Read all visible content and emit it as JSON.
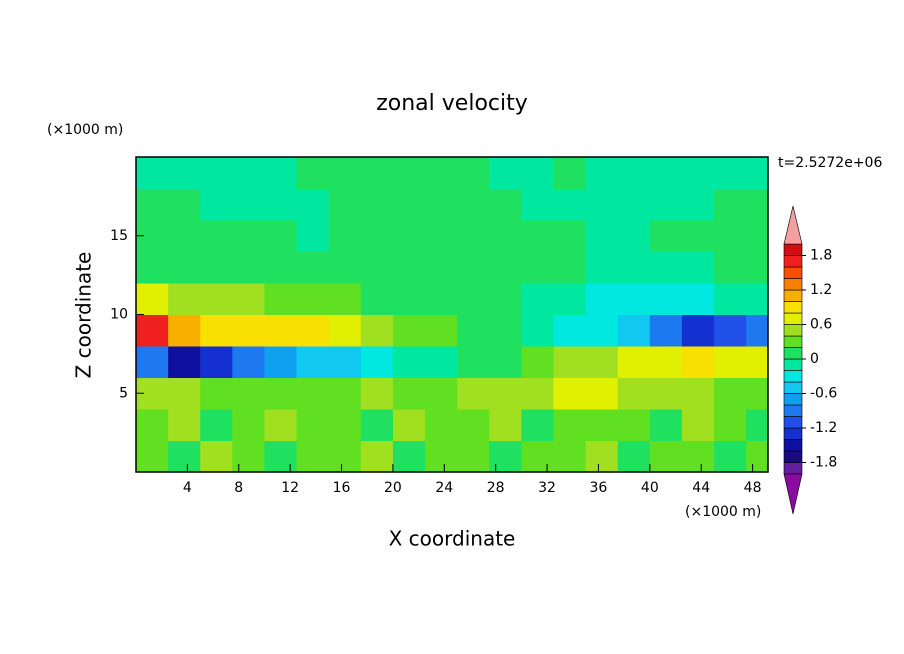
{
  "chart_data": {
    "type": "contour",
    "title": "zonal velocity",
    "x_label": "X coordinate",
    "y_label": "Z coordinate",
    "x_unit": "(×1000 m)",
    "y_unit": "(×1000 m)",
    "annotation": "t=2.5272e+06",
    "xlim": [
      0,
      49.2
    ],
    "ylim": [
      0,
      20
    ],
    "xticks": [
      4,
      8,
      12,
      16,
      20,
      24,
      28,
      32,
      36,
      40,
      44,
      48
    ],
    "yticks": [
      5,
      10,
      15
    ],
    "x": [
      1.25,
      3.75,
      6.25,
      8.75,
      11.25,
      13.75,
      16.25,
      18.75,
      21.25,
      23.75,
      26.25,
      28.75,
      31.25,
      33.75,
      36.25,
      38.75,
      41.25,
      43.75,
      46.25,
      48.75
    ],
    "y": [
      1,
      3,
      5,
      7,
      9,
      11,
      13,
      15,
      17,
      19
    ],
    "z": [
      [
        0.3,
        0.1,
        0.4,
        0.2,
        0.1,
        0.3,
        0.2,
        0.4,
        0.1,
        0.3,
        0.2,
        0.1,
        0.3,
        0.2,
        0.4,
        0.1,
        0.2,
        0.3,
        0.1,
        0.2
      ],
      [
        0.2,
        0.4,
        0.1,
        0.3,
        0.5,
        0.2,
        0.3,
        0.1,
        0.4,
        0.2,
        0.3,
        0.4,
        0.1,
        0.3,
        0.2,
        0.3,
        0.1,
        0.4,
        0.2,
        0.1
      ],
      [
        0.5,
        0.4,
        0.3,
        0.3,
        0.2,
        0.3,
        0.3,
        0.4,
        0.3,
        0.3,
        0.4,
        0.5,
        0.5,
        0.6,
        0.6,
        0.5,
        0.4,
        0.4,
        0.3,
        0.3
      ],
      [
        -1.0,
        -1.5,
        -1.3,
        -0.9,
        -0.7,
        -0.6,
        -0.5,
        -0.4,
        -0.2,
        -0.1,
        0.1,
        0.1,
        0.2,
        0.4,
        0.5,
        0.6,
        0.7,
        0.8,
        0.7,
        0.6
      ],
      [
        1.6,
        1.1,
        0.8,
        0.9,
        0.9,
        0.8,
        0.6,
        0.5,
        0.3,
        0.2,
        0.1,
        0.1,
        -0.1,
        -0.3,
        -0.4,
        -0.6,
        -0.9,
        -1.3,
        -1.2,
        -0.9
      ],
      [
        0.6,
        0.5,
        0.4,
        0.4,
        0.3,
        0.3,
        0.2,
        0.1,
        0.1,
        0.1,
        0.1,
        0.1,
        -0.1,
        -0.2,
        -0.3,
        -0.4,
        -0.4,
        -0.3,
        -0.2,
        -0.2
      ],
      [
        0.1,
        0.1,
        0.1,
        0.1,
        0.1,
        0.1,
        0.1,
        0.1,
        0.1,
        0.1,
        0.1,
        0.1,
        0.1,
        0.1,
        -0.1,
        -0.1,
        -0.1,
        -0.1,
        0.1,
        0.1
      ],
      [
        0.1,
        0.1,
        0.1,
        0.1,
        0.1,
        -0.1,
        0.1,
        0.1,
        0.1,
        0.1,
        0.1,
        0.1,
        0.1,
        0.1,
        -0.1,
        -0.1,
        0.1,
        0.1,
        0.1,
        0.1
      ],
      [
        0.1,
        0.1,
        -0.1,
        -0.1,
        -0.1,
        -0.1,
        0.1,
        0.1,
        0.1,
        0.1,
        0.1,
        0.1,
        -0.1,
        -0.1,
        -0.1,
        -0.1,
        -0.1,
        -0.1,
        0.1,
        0.1
      ],
      [
        -0.1,
        -0.1,
        -0.1,
        -0.1,
        -0.1,
        0.1,
        0.1,
        0.1,
        0.1,
        0.1,
        0.1,
        -0.1,
        -0.1,
        0.1,
        -0.1,
        -0.1,
        -0.1,
        -0.1,
        -0.1,
        -0.1
      ]
    ],
    "clim": [
      -2,
      2
    ],
    "cticks": [
      -1.8,
      -1.2,
      -0.6,
      0,
      0.6,
      1.2,
      1.8
    ],
    "colors": [
      "#6020a0",
      "#1a0a80",
      "#1010a0",
      "#1530d0",
      "#2050e8",
      "#1e78f0",
      "#10a0f0",
      "#10c8f0",
      "#00e8e0",
      "#00e8a0",
      "#20e060",
      "#60e020",
      "#a0e020",
      "#e0f000",
      "#f8e000",
      "#f8b000",
      "#f88000",
      "#f85000",
      "#f02020",
      "#d01010"
    ],
    "under_color": "#8b0aa0",
    "over_color": "#f4a0a0"
  }
}
